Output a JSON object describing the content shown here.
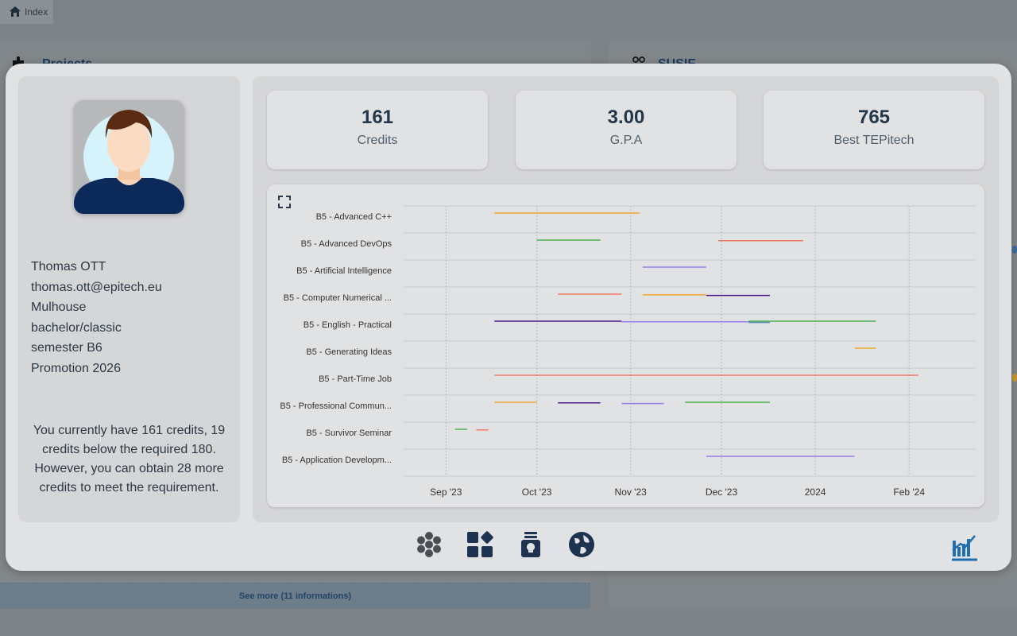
{
  "background": {
    "breadcrumb": "Index",
    "left_panel_title": "Projects",
    "right_panel_title": "SUSIE",
    "see_more": "See more (11 informations)"
  },
  "profile": {
    "name": "Thomas OTT",
    "email": "thomas.ott@epitech.eu",
    "city": "Mulhouse",
    "course": "bachelor/classic",
    "semester": "semester B6",
    "promotion": "Promotion 2026",
    "credit_message": "You currently have 161 credits, 19 credits below the required 180. However, you can obtain 28 more credits to meet the requirement."
  },
  "stats": [
    {
      "value": "161",
      "label": "Credits"
    },
    {
      "value": "3.00",
      "label": "G.P.A"
    },
    {
      "value": "765",
      "label": "Best TEPitech"
    }
  ],
  "icons": {
    "expand": "expand-icon",
    "bottom": [
      "modules-icon",
      "dashboard-icon",
      "projects-icon",
      "globe-icon"
    ],
    "corner": "stats-logo-icon"
  },
  "colors": {
    "orange": "#f0a830",
    "green": "#4caf50",
    "red": "#f07a5f",
    "purple": "#9a7ef0",
    "indigo": "#4a1b8c",
    "steel": "#5a8ab0",
    "accent": "#1f6fb0"
  },
  "chart_data": {
    "type": "gantt",
    "x_ticks": [
      "Sep '23",
      "Oct '23",
      "Nov '23",
      "Dec '23",
      "2024",
      "Feb '24"
    ],
    "x_range": [
      "2023-08-18",
      "2024-02-23"
    ],
    "grid": true,
    "categories": [
      "B5 - Advanced C++",
      "B5 - Advanced DevOps",
      "B5 - Artificial Intelligence",
      "B5 - Computer Numerical ...",
      "B5 - English - Practical",
      "B5 - Generating Ideas",
      "B5 - Part-Time Job",
      "B5 - Professional Commun...",
      "B5 - Survivor Seminar",
      "B5 - Application Developm..."
    ],
    "tasks": [
      {
        "row": 0,
        "start": "2023-09-17",
        "end": "2023-11-04",
        "color": "orange"
      },
      {
        "row": 1,
        "start": "2023-10-01",
        "end": "2023-10-22",
        "color": "green"
      },
      {
        "row": 1,
        "start": "2023-11-30",
        "end": "2023-12-28",
        "color": "red"
      },
      {
        "row": 2,
        "start": "2023-11-05",
        "end": "2023-11-26",
        "color": "purple"
      },
      {
        "row": 3,
        "start": "2023-10-08",
        "end": "2023-10-29",
        "color": "red"
      },
      {
        "row": 3,
        "start": "2023-11-05",
        "end": "2023-11-26",
        "color": "orange"
      },
      {
        "row": 3,
        "start": "2023-11-26",
        "end": "2023-12-17",
        "color": "indigo"
      },
      {
        "row": 4,
        "start": "2023-09-17",
        "end": "2023-10-29",
        "color": "indigo"
      },
      {
        "row": 4,
        "start": "2023-10-29",
        "end": "2023-12-17",
        "color": "purple"
      },
      {
        "row": 4,
        "start": "2023-12-10",
        "end": "2023-12-17",
        "color": "steel"
      },
      {
        "row": 4,
        "start": "2023-12-10",
        "end": "2024-01-21",
        "color": "green"
      },
      {
        "row": 5,
        "start": "2024-01-14",
        "end": "2024-01-21",
        "color": "orange"
      },
      {
        "row": 6,
        "start": "2023-09-17",
        "end": "2024-02-04",
        "color": "red"
      },
      {
        "row": 7,
        "start": "2023-09-17",
        "end": "2023-10-01",
        "color": "orange"
      },
      {
        "row": 7,
        "start": "2023-10-08",
        "end": "2023-10-22",
        "color": "indigo"
      },
      {
        "row": 7,
        "start": "2023-10-29",
        "end": "2023-11-12",
        "color": "purple"
      },
      {
        "row": 7,
        "start": "2023-11-19",
        "end": "2023-12-17",
        "color": "green"
      },
      {
        "row": 8,
        "start": "2023-09-04",
        "end": "2023-09-08",
        "color": "green"
      },
      {
        "row": 8,
        "start": "2023-09-11",
        "end": "2023-09-15",
        "color": "red"
      },
      {
        "row": 9,
        "start": "2023-11-26",
        "end": "2024-01-14",
        "color": "purple"
      }
    ]
  }
}
